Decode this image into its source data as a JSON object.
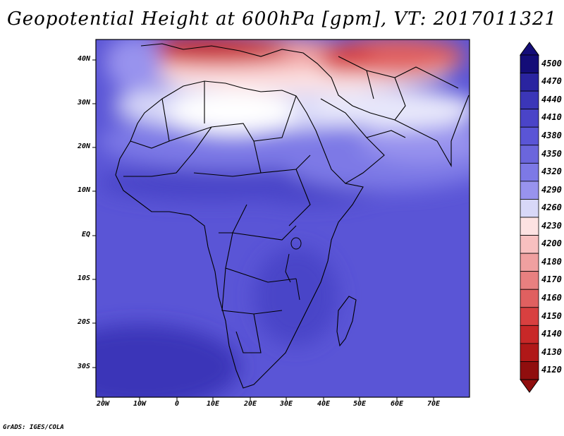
{
  "title": "Geopotential Height at 600hPa [gpm], VT: 2017011321",
  "footer": "GrADS: IGES/COLA",
  "axes": {
    "lat_labels": [
      "40N",
      "30N",
      "20N",
      "10N",
      "EQ",
      "10S",
      "20S",
      "30S"
    ],
    "lon_labels": [
      "20W",
      "10W",
      "0",
      "10E",
      "20E",
      "30E",
      "40E",
      "50E",
      "60E",
      "70E"
    ]
  },
  "colorbar": {
    "labels": [
      "4500",
      "4470",
      "4440",
      "4410",
      "4380",
      "4350",
      "4320",
      "4290",
      "4260",
      "4230",
      "4200",
      "4180",
      "4170",
      "4160",
      "4150",
      "4140",
      "4130",
      "4120"
    ],
    "colors": [
      "#140d78",
      "#2a24a0",
      "#3b36b8",
      "#4a44c8",
      "#5a55d6",
      "#6b66dc",
      "#7d79e6",
      "#9893ee",
      "#d8d8f8",
      "#fde2e2",
      "#f8c0c0",
      "#f0a0a0",
      "#e88080",
      "#e06060",
      "#d84040",
      "#c82828",
      "#b01818",
      "#900e0e"
    ]
  },
  "map": {
    "lon_range": [
      -22,
      80
    ],
    "lat_range": [
      -37,
      45
    ]
  }
}
